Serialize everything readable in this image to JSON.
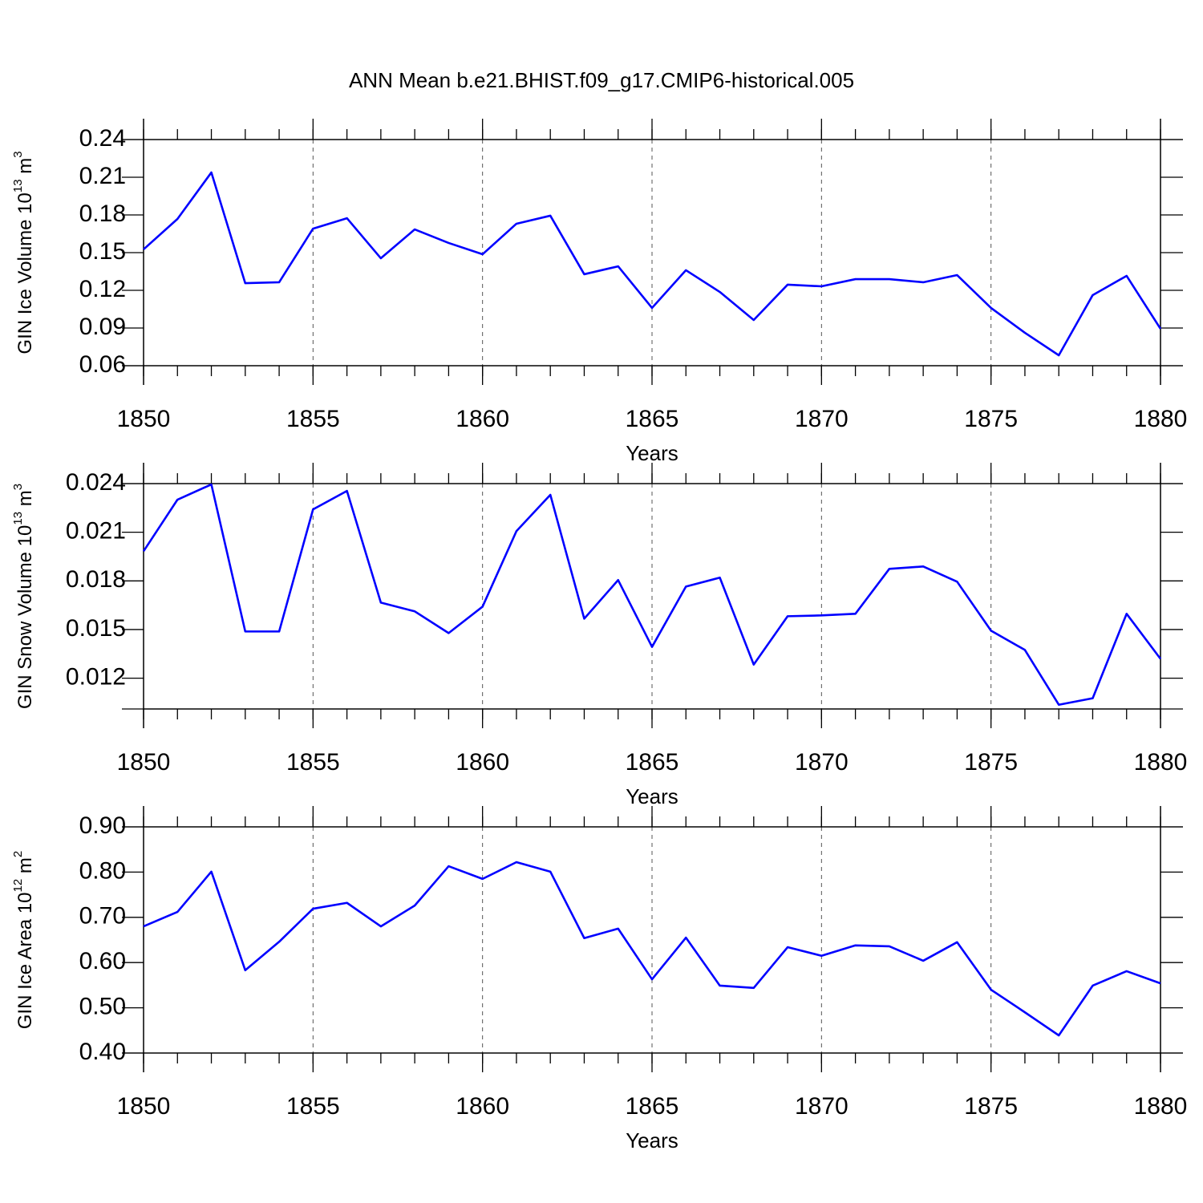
{
  "chart_data": [
    {
      "type": "line",
      "title": "ANN Mean b.e21.BHIST.f09_g17.CMIP6-historical.005",
      "ylabel": [
        "GIN Ice Volume 10",
        "13",
        " m",
        "3"
      ],
      "xlabel": "Years",
      "x": [
        1850,
        1851,
        1852,
        1853,
        1854,
        1855,
        1856,
        1857,
        1858,
        1859,
        1860,
        1861,
        1862,
        1863,
        1864,
        1865,
        1866,
        1867,
        1868,
        1869,
        1870,
        1871,
        1872,
        1873,
        1874,
        1875,
        1876,
        1877,
        1878,
        1879,
        1880
      ],
      "series": [
        {
          "color": "#0000ff",
          "values": [
            0.1526,
            0.1768,
            0.2138,
            0.1257,
            0.1264,
            0.1691,
            0.1774,
            0.1455,
            0.1685,
            0.1577,
            0.1487,
            0.173,
            0.1794,
            0.1328,
            0.1391,
            0.106,
            0.136,
            0.1187,
            0.0964,
            0.1245,
            0.1232,
            0.1289,
            0.1289,
            0.1264,
            0.1321,
            0.106,
            0.0862,
            0.0683,
            0.1162,
            0.1315,
            0.0894
          ]
        }
      ],
      "xlim": [
        1850,
        1880
      ],
      "xticks": [
        1850,
        1855,
        1860,
        1865,
        1870,
        1875,
        1880
      ],
      "ylim": [
        0.06,
        0.24
      ],
      "yticks": [
        0.24,
        0.21,
        0.18,
        0.15,
        0.12,
        0.09,
        0.06
      ],
      "grid": "x-dashed"
    },
    {
      "type": "line",
      "ylabel": [
        "GIN Snow Volume 10",
        "13",
        " m",
        "3"
      ],
      "xlabel": "Years",
      "x": [
        1850,
        1851,
        1852,
        1853,
        1854,
        1855,
        1856,
        1857,
        1858,
        1859,
        1860,
        1861,
        1862,
        1863,
        1864,
        1865,
        1866,
        1867,
        1868,
        1869,
        1870,
        1871,
        1872,
        1873,
        1874,
        1875,
        1876,
        1877,
        1878,
        1879,
        1880
      ],
      "series": [
        {
          "color": "#0000ff",
          "values": [
            0.01983,
            0.02301,
            0.02395,
            0.01488,
            0.01488,
            0.02241,
            0.02355,
            0.01666,
            0.01612,
            0.01478,
            0.01641,
            0.02107,
            0.02331,
            0.01567,
            0.01805,
            0.01393,
            0.01765,
            0.0182,
            0.01284,
            0.01582,
            0.01587,
            0.01597,
            0.01874,
            0.01889,
            0.01795,
            0.01493,
            0.01374,
            0.01036,
            0.01076,
            0.01597,
            0.01319
          ]
        }
      ],
      "xlim": [
        1850,
        1880
      ],
      "xticks": [
        1850,
        1855,
        1860,
        1865,
        1870,
        1875,
        1880
      ],
      "ylim": [
        0.0101,
        0.024
      ],
      "yticks": [
        0.024,
        0.021,
        0.018,
        0.015,
        0.012
      ],
      "grid": "x-dashed"
    },
    {
      "type": "line",
      "ylabel": [
        "GIN Ice Area 10",
        "12",
        " m",
        "2"
      ],
      "xlabel": "Years",
      "x": [
        1850,
        1851,
        1852,
        1853,
        1854,
        1855,
        1856,
        1857,
        1858,
        1859,
        1860,
        1861,
        1862,
        1863,
        1864,
        1865,
        1866,
        1867,
        1868,
        1869,
        1870,
        1871,
        1872,
        1873,
        1874,
        1875,
        1876,
        1877,
        1878,
        1879,
        1880
      ],
      "series": [
        {
          "color": "#0000ff",
          "values": [
            0.68,
            0.712,
            0.801,
            0.583,
            0.646,
            0.719,
            0.732,
            0.68,
            0.726,
            0.813,
            0.785,
            0.822,
            0.801,
            0.654,
            0.675,
            0.563,
            0.655,
            0.549,
            0.544,
            0.634,
            0.615,
            0.638,
            0.636,
            0.604,
            0.645,
            0.54,
            0.49,
            0.439,
            0.549,
            0.581,
            0.554
          ]
        }
      ],
      "xlim": [
        1850,
        1880
      ],
      "xticks": [
        1850,
        1855,
        1860,
        1865,
        1870,
        1875,
        1880
      ],
      "ylim": [
        0.4,
        0.9
      ],
      "yticks": [
        {
          "value": 0.9,
          "label": "0.90"
        },
        {
          "value": 0.8,
          "label": "0.80"
        },
        {
          "value": 0.7,
          "label": "0.70"
        },
        {
          "value": 0.6,
          "label": "0.60"
        },
        {
          "value": 0.5,
          "label": "0.50"
        },
        {
          "value": 0.4,
          "label": "0.40"
        }
      ],
      "grid": "x-dashed"
    }
  ]
}
